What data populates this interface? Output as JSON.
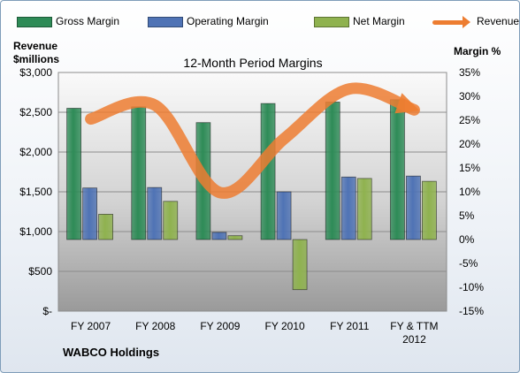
{
  "chart_data": {
    "type": "bar",
    "title": "12-Month Period Margins",
    "company": "WABCO Holdings",
    "ylabel_left": [
      "Revenue",
      "$millions"
    ],
    "ylabel_right": "Margin %",
    "categories": [
      [
        "FY 2007"
      ],
      [
        "FY 2008"
      ],
      [
        "FY 2009"
      ],
      [
        "FY 2010"
      ],
      [
        "FY 2011"
      ],
      [
        "FY & TTM",
        "2012"
      ]
    ],
    "ylim_left": [
      0,
      3000
    ],
    "ylim_right": [
      -15,
      35
    ],
    "yticks_left": [
      "$3,000",
      "$2,500",
      "$2,000",
      "$1,500",
      "$1,000",
      "$500",
      "$-"
    ],
    "yticks_left_values": [
      3000,
      2500,
      2000,
      1500,
      1000,
      500,
      0
    ],
    "yticks_right": [
      "35%",
      "30%",
      "25%",
      "20%",
      "15%",
      "10%",
      "5%",
      "0%",
      "-5%",
      "-10%",
      "-15%"
    ],
    "yticks_right_values": [
      35,
      30,
      25,
      20,
      15,
      10,
      5,
      0,
      -5,
      -10,
      -15
    ],
    "series": [
      {
        "name": "Gross Margin",
        "axis": "right",
        "color": "#2e8b57",
        "values": [
          27.5,
          27.8,
          24.5,
          28.5,
          28.8,
          29.3
        ]
      },
      {
        "name": "Operating Margin",
        "axis": "right",
        "color": "#4f73b5",
        "values": [
          10.8,
          10.9,
          1.5,
          10.0,
          13.1,
          13.3
        ]
      },
      {
        "name": "Net Margin",
        "axis": "right",
        "color": "#8fb24f",
        "values": [
          5.3,
          8.0,
          0.8,
          -10.5,
          12.8,
          12.2
        ]
      },
      {
        "name": "Revenues",
        "axis": "left",
        "type": "line",
        "color": "#ed7d31",
        "values": [
          2416,
          2586,
          1490,
          2175,
          2794,
          2530
        ]
      }
    ],
    "grid": true,
    "legend": "top"
  }
}
